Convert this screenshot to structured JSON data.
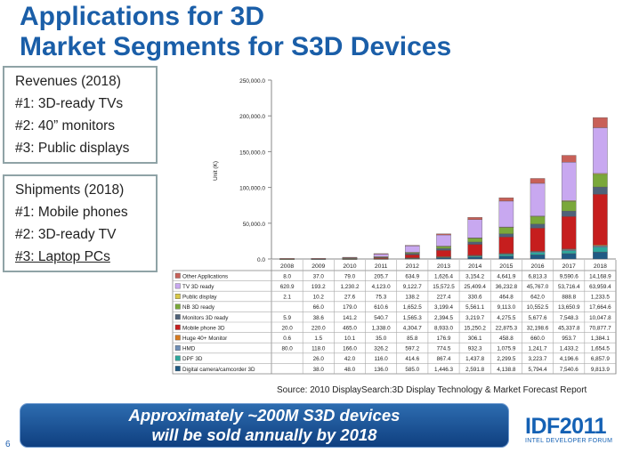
{
  "title": {
    "line1": "Applications for 3D",
    "line2": "Market Segments for S3D Devices"
  },
  "revenues_box": {
    "heading": "Revenues (2018)",
    "items": [
      "#1: 3D-ready TVs",
      "#2: 40” monitors",
      "#3: Public displays"
    ]
  },
  "shipments_box": {
    "heading": "Shipments (2018)",
    "items": [
      "#1: Mobile phones",
      "#2: 3D-ready TV",
      "#3: Laptop PCs"
    ]
  },
  "source": "Source: 2010 DisplaySearch:3D Display Technology & Market Forecast Report",
  "banner": {
    "line1": "Approximately ~200M S3D devices",
    "line2": "will be sold annually by 2018"
  },
  "page_number": "6",
  "logo": {
    "text": "IDF2011",
    "subtitle": "INTEL DEVELOPER FORUM"
  },
  "chart_data": {
    "type": "bar",
    "stacked": true,
    "ylabel": "Unit (K)",
    "ylim": [
      0,
      250000
    ],
    "yticks": [
      "0.0",
      "50,000.0",
      "100,000.0",
      "150,000.0",
      "200,000.0",
      "250,000.0"
    ],
    "categories": [
      "2008",
      "2009",
      "2010",
      "2011",
      "2012",
      "2013",
      "2014",
      "2015",
      "2016",
      "2017",
      "2018"
    ],
    "series": [
      {
        "name": "Digital camera/camcorder 3D",
        "color": "#1f5a84",
        "values": [
          0,
          38.0,
          48.0,
          136.0,
          585.0,
          1446.3,
          2591.8,
          4138.8,
          5794.4,
          7540.6,
          9813.9
        ],
        "labels": [
          "",
          "38.0",
          "48.0",
          "136.0",
          "585.0",
          "1,446.3",
          "2,591.8",
          "4,138.8",
          "5,794.4",
          "7,540.6",
          "9,813.9"
        ]
      },
      {
        "name": "DPF 3D",
        "color": "#2ea79c",
        "values": [
          0,
          26.0,
          42.0,
          116.0,
          414.6,
          867.4,
          1437.8,
          2299.5,
          3223.7,
          4196.6,
          6857.9
        ],
        "labels": [
          "",
          "26.0",
          "42.0",
          "116.0",
          "414.6",
          "867.4",
          "1,437.8",
          "2,299.5",
          "3,223.7",
          "4,196.6",
          "6,857.9"
        ]
      },
      {
        "name": "HMD",
        "color": "#6f8fb7",
        "values": [
          80.0,
          118.0,
          166.0,
          326.2,
          597.2,
          774.5,
          932.3,
          1075.9,
          1241.7,
          1433.2,
          1654.5
        ],
        "labels": [
          "80.0",
          "118.0",
          "166.0",
          "326.2",
          "597.2",
          "774.5",
          "932.3",
          "1,075.9",
          "1,241.7",
          "1,433.2",
          "1,654.5"
        ]
      },
      {
        "name": "Huge 40+ Monitor",
        "color": "#d67a1f",
        "values": [
          0.6,
          1.5,
          10.1,
          35.0,
          85.8,
          176.9,
          306.1,
          458.8,
          660.0,
          953.7,
          1384.1
        ],
        "labels": [
          "0.6",
          "1.5",
          "10.1",
          "35.0",
          "85.8",
          "176.9",
          "306.1",
          "458.8",
          "660.0",
          "953.7",
          "1,384.1"
        ]
      },
      {
        "name": "Mobile phone 3D",
        "color": "#c61e1e",
        "values": [
          20.0,
          220.0,
          465.0,
          1338.0,
          4304.7,
          8933.0,
          15250.2,
          22875.3,
          32198.6,
          45337.8,
          70877.7
        ],
        "labels": [
          "20.0",
          "220.0",
          "465.0",
          "1,338.0",
          "4,304.7",
          "8,933.0",
          "15,250.2",
          "22,875.3",
          "32,198.6",
          "45,337.8",
          "70,877.7"
        ]
      },
      {
        "name": "Monitors 3D ready",
        "color": "#4f6279",
        "values": [
          5.9,
          38.6,
          141.2,
          540.7,
          1565.3,
          2394.5,
          3219.7,
          4275.5,
          5677.6,
          7548.3,
          10047.8
        ],
        "labels": [
          "5.9",
          "38.6",
          "141.2",
          "540.7",
          "1,565.3",
          "2,394.5",
          "3,219.7",
          "4,275.5",
          "5,677.6",
          "7,548.3",
          "10,047.8"
        ]
      },
      {
        "name": "NB 3D ready",
        "color": "#7aa83a",
        "values": [
          0,
          66.0,
          179.0,
          610.6,
          1652.5,
          3199.4,
          5561.1,
          9113.0,
          10552.5,
          13650.9,
          17664.6
        ],
        "labels": [
          "",
          "66.0",
          "179.0",
          "610.6",
          "1,652.5",
          "3,199.4",
          "5,561.1",
          "9,113.0",
          "10,552.5",
          "13,650.9",
          "17,664.6"
        ]
      },
      {
        "name": "Public display",
        "color": "#d8c848",
        "values": [
          2.1,
          10.2,
          27.6,
          75.3,
          138.2,
          227.4,
          330.6,
          464.8,
          642.0,
          888.8,
          1233.5
        ],
        "labels": [
          "2.1",
          "10.2",
          "27.6",
          "75.3",
          "138.2",
          "227.4",
          "330.6",
          "464.8",
          "642.0",
          "888.8",
          "1,233.5"
        ]
      },
      {
        "name": "TV 3D ready",
        "color": "#c8a8f0",
        "values": [
          620.9,
          193.2,
          1230.2,
          4123.0,
          9122.7,
          15572.5,
          25409.4,
          36232.8,
          45767.0,
          53716.4,
          63959.4
        ],
        "labels": [
          "620.9",
          "193.2",
          "1,230.2",
          "4,123.0",
          "9,122.7",
          "15,572.5",
          "25,409.4",
          "36,232.8",
          "45,767.0",
          "53,716.4",
          "63,959.4"
        ]
      },
      {
        "name": "Other Applications",
        "color": "#c86058",
        "values": [
          8.0,
          37.0,
          79.0,
          205.7,
          634.9,
          1626.4,
          3154.2,
          4641.9,
          6813.3,
          9590.6,
          14168.9
        ],
        "labels": [
          "8.0",
          "37.0",
          "79.0",
          "205.7",
          "634.9",
          "1,626.4",
          "3,154.2",
          "4,641.9",
          "6,813.3",
          "9,590.6",
          "14,168.9"
        ]
      }
    ],
    "table_row_order": [
      "Other Applications",
      "TV 3D ready",
      "Public display",
      "NB 3D ready",
      "Monitors 3D ready",
      "Mobile phone 3D",
      "Huge 40+ Monitor",
      "HMD",
      "DPF 3D",
      "Digital camera/camcorder 3D"
    ],
    "grid": false,
    "legend": "table-below"
  }
}
